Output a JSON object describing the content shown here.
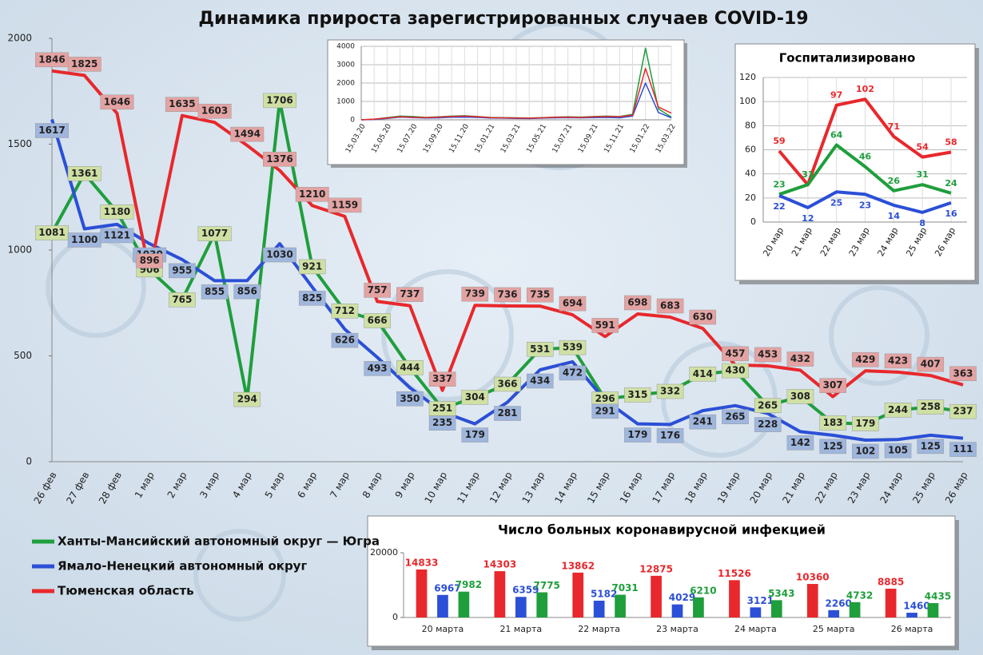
{
  "chart_data": [
    {
      "type": "line",
      "title": "Динамика прироста зарегистрированных случаев COVID-19",
      "categories": [
        "26 фев",
        "27 фев",
        "28 фев",
        "1 мар",
        "2 мар",
        "3 мар",
        "4 мар",
        "5 мар",
        "6 мар",
        "7 мар",
        "8 мар",
        "9 мар",
        "10 мар",
        "11 мар",
        "12 мар",
        "13 мар",
        "14 мар",
        "15 мар",
        "16 мар",
        "17 мар",
        "18 мар",
        "19 мар",
        "20 мар",
        "21 мар",
        "22 мар",
        "23 мар",
        "24 мар",
        "25 мар",
        "26 мар"
      ],
      "series": [
        {
          "name": "Ханты-Мансийский автономный округ — Югра",
          "color": "#1f9e3c",
          "label_fill": "#cfe0a4",
          "values": [
            1081,
            1361,
            1180,
            906,
            765,
            1077,
            294,
            1706,
            921,
            712,
            666,
            444,
            251,
            304,
            366,
            531,
            539,
            296,
            315,
            332,
            414,
            430,
            265,
            308,
            183,
            179,
            244,
            258,
            237
          ]
        },
        {
          "name": "Ямало-Ненецкий автономный округ",
          "color": "#2b4fd6",
          "label_fill": "#9fb6dd",
          "values": [
            1617,
            1100,
            1121,
            1030,
            955,
            855,
            856,
            1030,
            825,
            626,
            493,
            350,
            235,
            179,
            281,
            434,
            472,
            291,
            179,
            176,
            241,
            265,
            228,
            142,
            125,
            102,
            105,
            125,
            111
          ]
        },
        {
          "name": "Тюменская область",
          "color": "#e8282c",
          "label_fill": "#e4a3a3",
          "values": [
            1846,
            1825,
            1646,
            896,
            1635,
            1603,
            1494,
            1376,
            1210,
            1159,
            757,
            737,
            337,
            739,
            736,
            735,
            694,
            591,
            698,
            683,
            630,
            457,
            453,
            432,
            307,
            429,
            423,
            407,
            363
          ]
        }
      ],
      "ylim": [
        0,
        2000
      ],
      "yticks": [
        0,
        500,
        1000,
        1500,
        2000
      ],
      "grid": false,
      "data_labels": "box"
    },
    {
      "type": "line",
      "categories": [
        "15.03.20",
        null,
        "15.05.20",
        null,
        "15.07.20",
        null,
        "15.09.20",
        null,
        "15.11.20",
        null,
        "15.01.21",
        null,
        "15.03.21",
        null,
        "15.05.21",
        null,
        "15.07.21",
        null,
        "15.09.21",
        null,
        "15.11.21",
        null,
        "15.01.22",
        null,
        "15.03.22"
      ],
      "series": [
        {
          "color": "#1f9e3c",
          "values": [
            0,
            30,
            120,
            200,
            180,
            130,
            160,
            200,
            220,
            180,
            130,
            120,
            110,
            100,
            120,
            150,
            160,
            150,
            180,
            200,
            180,
            300,
            3900,
            600,
            150
          ]
        },
        {
          "color": "#2b4fd6",
          "values": [
            0,
            20,
            80,
            150,
            120,
            100,
            110,
            140,
            150,
            130,
            100,
            90,
            80,
            70,
            90,
            110,
            120,
            110,
            120,
            130,
            110,
            200,
            2000,
            400,
            110
          ]
        },
        {
          "color": "#e8282c",
          "values": [
            0,
            40,
            100,
            170,
            140,
            120,
            150,
            180,
            200,
            170,
            120,
            110,
            100,
            90,
            110,
            140,
            150,
            130,
            160,
            180,
            170,
            250,
            2800,
            700,
            360
          ]
        }
      ],
      "ylim": [
        0,
        4000
      ],
      "yticks": [
        0,
        1000,
        2000,
        3000,
        4000
      ],
      "grid": true,
      "data_labels": "none"
    },
    {
      "type": "line",
      "title": "Госпитализировано",
      "categories": [
        "20 мар",
        "21 мар",
        "22 мар",
        "23 мар",
        "24 мар",
        "25 мар",
        "26 мар"
      ],
      "series": [
        {
          "color": "#e8282c",
          "values": [
            59,
            31,
            97,
            102,
            71,
            54,
            58
          ]
        },
        {
          "color": "#1f9e3c",
          "values": [
            23,
            31,
            64,
            46,
            26,
            31,
            24
          ]
        },
        {
          "color": "#2b4fd6",
          "values": [
            22,
            12,
            25,
            23,
            14,
            8,
            16
          ]
        }
      ],
      "ylim": [
        0,
        120
      ],
      "yticks": [
        0,
        20,
        40,
        60,
        80,
        100,
        120
      ],
      "grid": true,
      "data_labels": "text"
    },
    {
      "type": "bar",
      "title": "Число больных коронавирусной инфекцией",
      "categories": [
        "20 марта",
        "21 марта",
        "22 марта",
        "23 марта",
        "24 марта",
        "25 марта",
        "26 марта"
      ],
      "series": [
        {
          "color": "#e8282c",
          "values": [
            14833,
            14303,
            13862,
            12875,
            11526,
            10360,
            8885
          ]
        },
        {
          "color": "#2b4fd6",
          "values": [
            6967,
            6359,
            5182,
            4029,
            3121,
            2260,
            1460
          ]
        },
        {
          "color": "#1f9e3c",
          "values": [
            7982,
            7775,
            7031,
            6210,
            5343,
            4732,
            4435
          ]
        }
      ],
      "ylim": [
        0,
        20000
      ],
      "yticks": [
        0,
        20000
      ],
      "grid": false,
      "data_labels": "text"
    }
  ]
}
